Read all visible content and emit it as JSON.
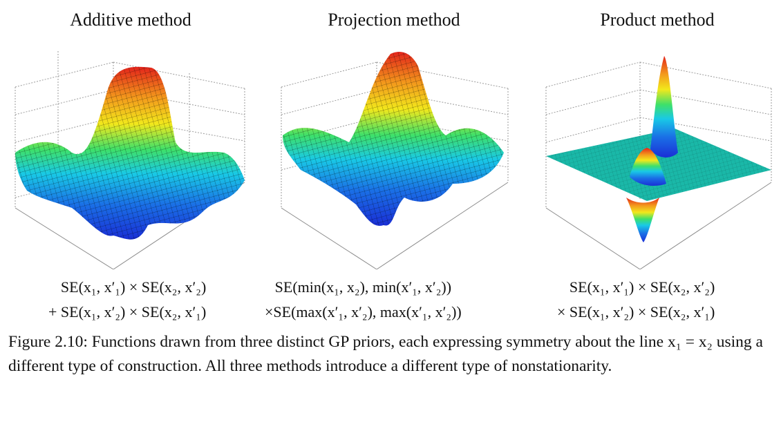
{
  "panels": [
    {
      "title": "Additive method",
      "formula_line1": "SE(x₁, x′₁) × SE(x₂, x′₂)",
      "formula_line2": "+ SE(x₁, x′₂) × SE(x₂, x′₁)"
    },
    {
      "title": "Projection method",
      "formula_line1": "SE(min(x₁, x₂), min(x′₁, x′₂))",
      "formula_line2": "×SE(max(x′₁, x′₂), max(x′₁, x′₂))"
    },
    {
      "title": "Product method",
      "formula_line1": "SE(x₁, x′₁) × SE(x₂, x′₂)",
      "formula_line2": "× SE(x₁, x′₂) × SE(x₂, x′₁)"
    }
  ],
  "caption": {
    "label": "Figure 2.10:",
    "text": "Functions drawn from three distinct GP priors, each expressing symmetry about the line x₁ = x₂ using a different type of construction. All three methods introduce a different type of nonstationarity."
  },
  "colors": {
    "low": "#1a2fd6",
    "mid_low": "#19c9e6",
    "mid": "#3ee06a",
    "mid_high": "#f2e81c",
    "high": "#e3241b",
    "flat": "#1ab8a8",
    "grid": "#9a9a9a"
  }
}
